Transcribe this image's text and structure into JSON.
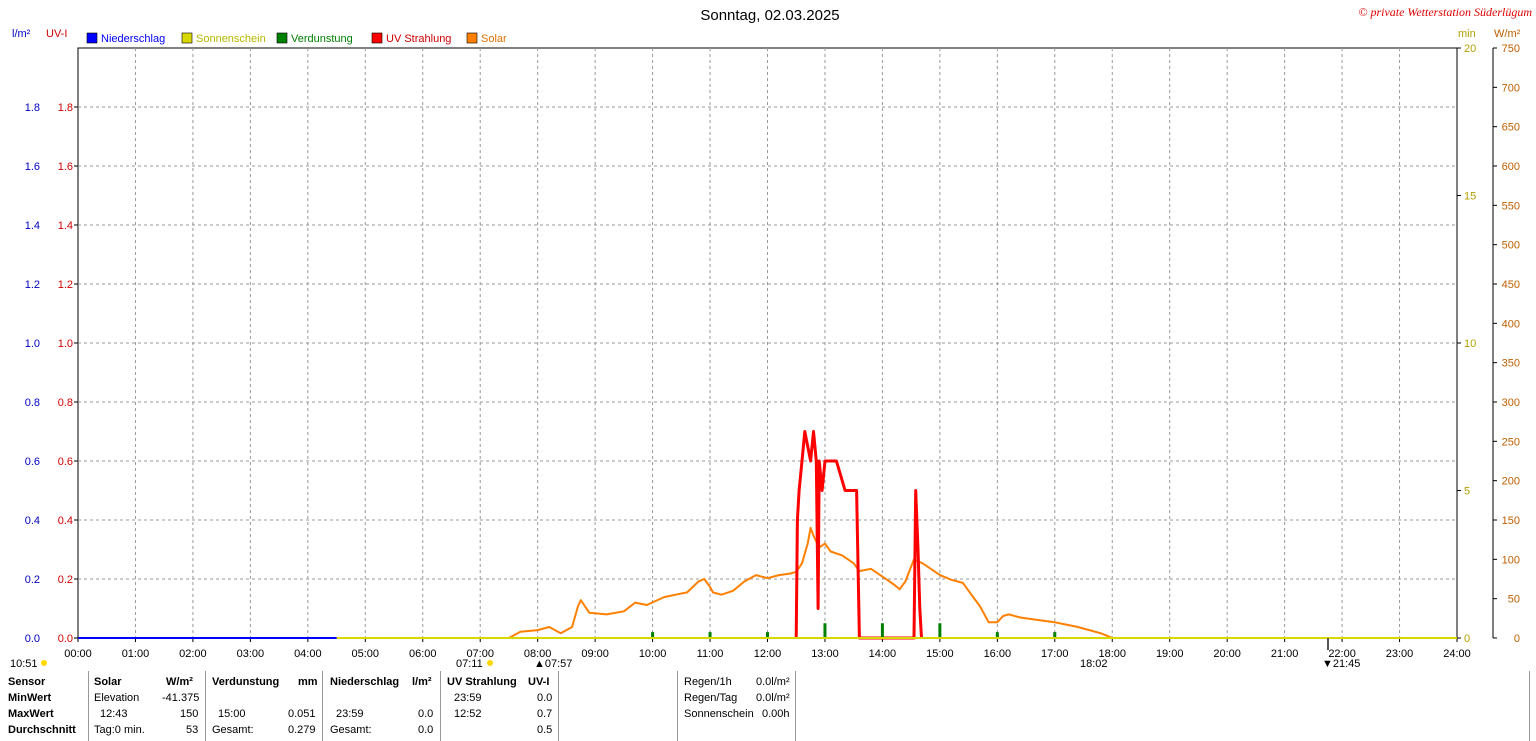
{
  "chart_data": {
    "type": "line",
    "title": "Sonntag, 02.03.2025",
    "copyright": "© private Wetterstation Süderlügum",
    "left_axis_units": [
      "l/m²",
      "UV-I"
    ],
    "right_axis_units": [
      "min",
      "W/m²"
    ],
    "legend": [
      {
        "label": "Niederschlag",
        "color": "#0000ff"
      },
      {
        "label": "Sonnenschein",
        "color": "#d8d800"
      },
      {
        "label": "Verdunstung",
        "color": "#008000"
      },
      {
        "label": "UV Strahlung",
        "color": "#ff0000"
      },
      {
        "label": "Solar",
        "color": "#ff8000"
      }
    ],
    "x_ticks": [
      "00:00",
      "01:00",
      "02:00",
      "03:00",
      "04:00",
      "05:00",
      "06:00",
      "07:00",
      "08:00",
      "09:00",
      "10:00",
      "11:00",
      "12:00",
      "13:00",
      "14:00",
      "15:00",
      "16:00",
      "17:00",
      "18:00",
      "19:00",
      "20:00",
      "21:00",
      "22:00",
      "23:00",
      "24:00"
    ],
    "x_range_hours": [
      0,
      24
    ],
    "y_left_ticks": [
      "0.0",
      "0.2",
      "0.4",
      "0.6",
      "0.8",
      "1.0",
      "1.2",
      "1.4",
      "1.6",
      "1.8"
    ],
    "y_left_range": [
      0,
      2.0
    ],
    "y_min_ticks": [
      "0",
      "5",
      "10",
      "15",
      "20"
    ],
    "y_min_range": [
      0,
      20
    ],
    "y_wm2_ticks": [
      "0",
      "50",
      "100",
      "150",
      "200",
      "250",
      "300",
      "350",
      "400",
      "450",
      "500",
      "550",
      "600",
      "650",
      "700",
      "750"
    ],
    "y_wm2_range": [
      0,
      750
    ],
    "grid": true,
    "markers": {
      "left_time": "10:51",
      "sunrise": "07:11",
      "sunrise2": "07:57",
      "sunset": "18:02",
      "moon": "21:45"
    },
    "series": [
      {
        "name": "Solar",
        "axis": "wm2",
        "color": "#ff8000",
        "points": [
          [
            7.5,
            0
          ],
          [
            7.7,
            8
          ],
          [
            8.0,
            10
          ],
          [
            8.2,
            14
          ],
          [
            8.4,
            6
          ],
          [
            8.6,
            14
          ],
          [
            8.7,
            40
          ],
          [
            8.75,
            48
          ],
          [
            8.9,
            32
          ],
          [
            9.2,
            30
          ],
          [
            9.5,
            34
          ],
          [
            9.7,
            45
          ],
          [
            9.9,
            42
          ],
          [
            10.2,
            52
          ],
          [
            10.4,
            55
          ],
          [
            10.6,
            58
          ],
          [
            10.8,
            72
          ],
          [
            10.9,
            75
          ],
          [
            11.0,
            65
          ],
          [
            11.05,
            58
          ],
          [
            11.2,
            55
          ],
          [
            11.4,
            60
          ],
          [
            11.6,
            72
          ],
          [
            11.8,
            80
          ],
          [
            12.0,
            76
          ],
          [
            12.2,
            80
          ],
          [
            12.4,
            82
          ],
          [
            12.5,
            84
          ],
          [
            12.6,
            95
          ],
          [
            12.7,
            120
          ],
          [
            12.75,
            140
          ],
          [
            12.8,
            130
          ],
          [
            12.9,
            115
          ],
          [
            13.0,
            120
          ],
          [
            13.1,
            110
          ],
          [
            13.3,
            105
          ],
          [
            13.5,
            95
          ],
          [
            13.6,
            85
          ],
          [
            13.8,
            88
          ],
          [
            14.0,
            78
          ],
          [
            14.2,
            68
          ],
          [
            14.3,
            62
          ],
          [
            14.4,
            72
          ],
          [
            14.55,
            100
          ],
          [
            14.6,
            98
          ],
          [
            14.7,
            95
          ],
          [
            14.8,
            90
          ],
          [
            15.0,
            80
          ],
          [
            15.2,
            74
          ],
          [
            15.4,
            70
          ],
          [
            15.5,
            60
          ],
          [
            15.7,
            40
          ],
          [
            15.85,
            20
          ],
          [
            16.0,
            20
          ],
          [
            16.1,
            28
          ],
          [
            16.2,
            30
          ],
          [
            16.4,
            26
          ],
          [
            16.6,
            24
          ],
          [
            16.8,
            22
          ],
          [
            17.0,
            20
          ],
          [
            17.2,
            17
          ],
          [
            17.4,
            14
          ],
          [
            17.6,
            10
          ],
          [
            17.8,
            6
          ],
          [
            17.9,
            3
          ],
          [
            18.0,
            0
          ]
        ]
      },
      {
        "name": "UV Strahlung",
        "axis": "left",
        "color": "#ff0000",
        "points": [
          [
            12.5,
            0
          ],
          [
            12.52,
            0.4
          ],
          [
            12.55,
            0.5
          ],
          [
            12.6,
            0.6
          ],
          [
            12.65,
            0.7
          ],
          [
            12.75,
            0.6
          ],
          [
            12.8,
            0.7
          ],
          [
            12.85,
            0.6
          ],
          [
            12.88,
            0.1
          ],
          [
            12.9,
            0.6
          ],
          [
            12.95,
            0.5
          ],
          [
            13.0,
            0.6
          ],
          [
            13.2,
            0.6
          ],
          [
            13.35,
            0.5
          ],
          [
            13.55,
            0.5
          ],
          [
            13.6,
            0
          ],
          [
            14.55,
            0
          ],
          [
            14.58,
            0.5
          ],
          [
            14.62,
            0.3
          ],
          [
            14.65,
            0.1
          ],
          [
            14.68,
            0
          ]
        ]
      },
      {
        "name": "Verdunstung",
        "axis": "left",
        "color": "#008000",
        "bars": [
          [
            10.0,
            0.02
          ],
          [
            11.0,
            0.02
          ],
          [
            12.0,
            0.02
          ],
          [
            13.0,
            0.05
          ],
          [
            14.0,
            0.05
          ],
          [
            15.0,
            0.05
          ],
          [
            16.0,
            0.02
          ],
          [
            17.0,
            0.02
          ]
        ]
      },
      {
        "name": "Sonnenschein",
        "axis": "min",
        "color": "#d8d800",
        "points": [
          [
            4.5,
            0
          ],
          [
            24,
            0
          ]
        ]
      },
      {
        "name": "Niederschlag",
        "axis": "left",
        "color": "#0000ff",
        "points": [
          [
            0,
            0
          ],
          [
            4.5,
            0
          ]
        ]
      }
    ]
  },
  "table": {
    "headers": {
      "sensor": "Sensor",
      "solar": "Solar",
      "solar_unit": "W/m²",
      "verdunstung": "Verdunstung",
      "verdunstung_unit": "mm",
      "niederschlag": "Niederschlag",
      "niederschlag_unit": "l/m²",
      "uv": "UV Strahlung",
      "uv_unit": "UV-I"
    },
    "rows": {
      "min": "MinWert",
      "max": "MaxWert",
      "avg": "Durchschnitt"
    },
    "solar": {
      "elev_label": "Elevation",
      "elev_value": "-41.375",
      "max_time": "12:43",
      "max_value": "150",
      "avg_label": "Tag:0 min.",
      "avg_value": "53"
    },
    "verdunstung": {
      "max_time": "15:00",
      "max_value": "0.051",
      "total_label": "Gesamt:",
      "total_value": "0.279"
    },
    "niederschlag": {
      "max_time": "23:59",
      "max_value": "0.0",
      "total_label": "Gesamt:",
      "total_value": "0.0"
    },
    "uv": {
      "min_time": "23:59",
      "min_value": "0.0",
      "max_time": "12:52",
      "max_value": "0.7",
      "avg_value": "0.5"
    },
    "extra": {
      "regen1h_label": "Regen/1h",
      "regen1h_value": "0.0l/m²",
      "regentag_label": "Regen/Tag",
      "regentag_value": "0.0l/m²",
      "sonne_label": "Sonnenschein",
      "sonne_value": "0.00h"
    }
  }
}
